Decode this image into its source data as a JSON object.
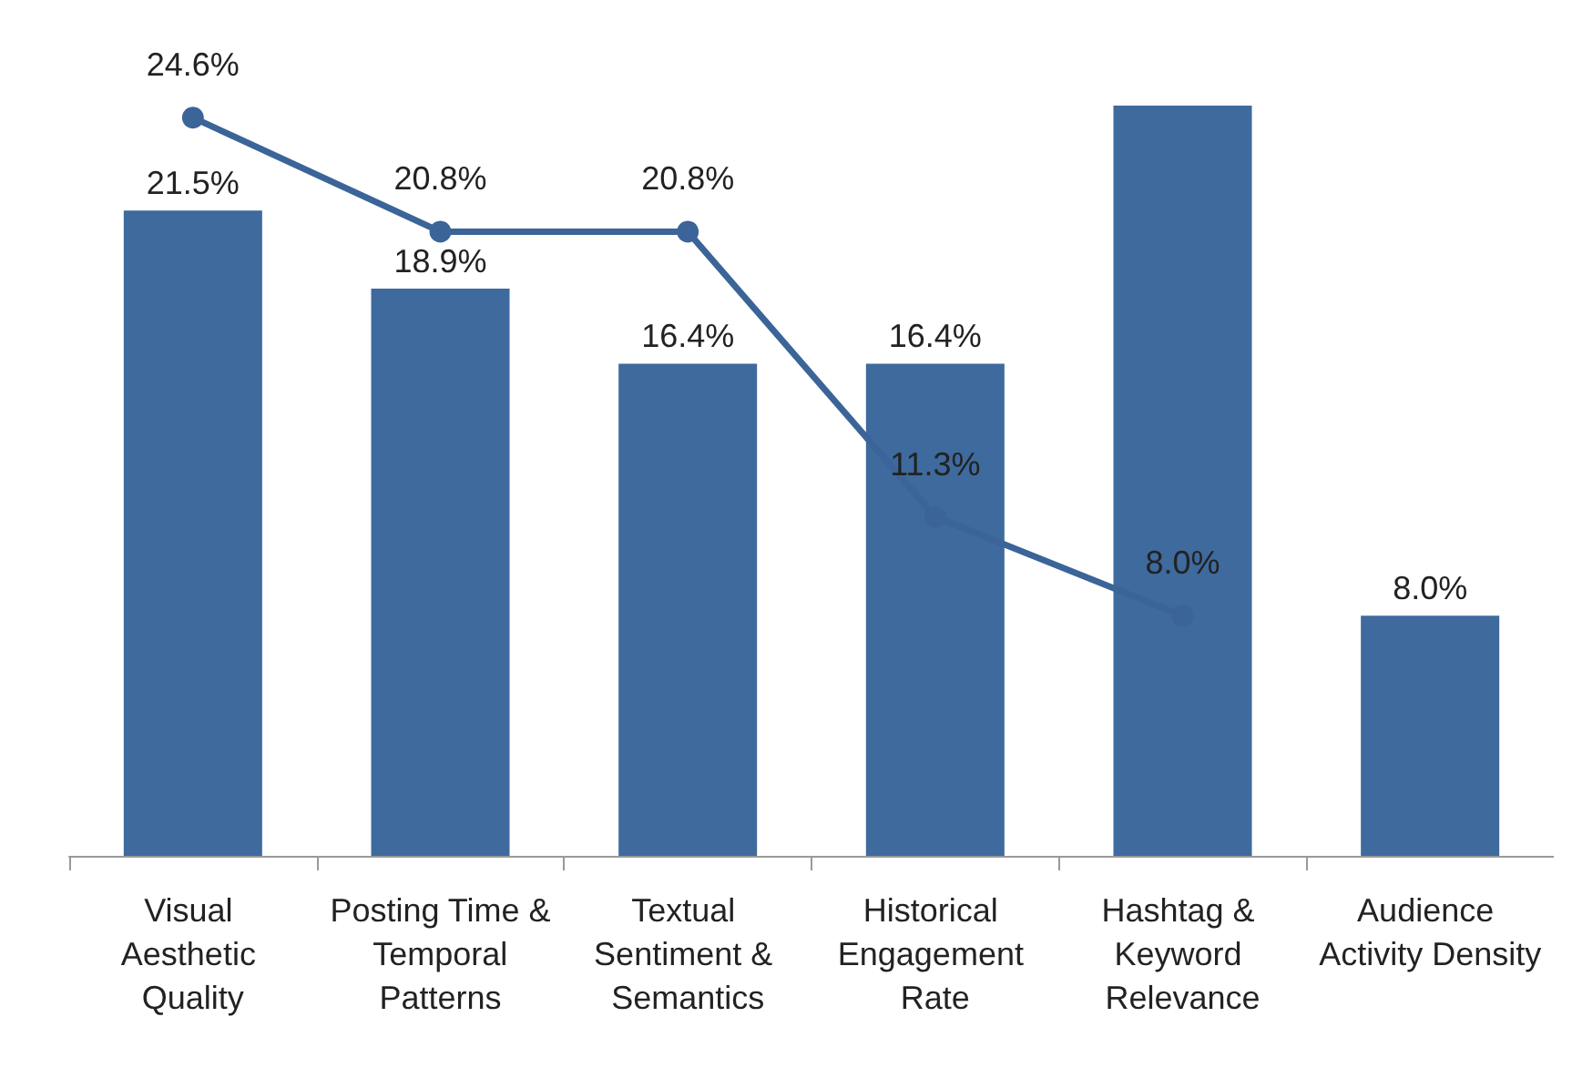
{
  "chart_data": {
    "type": "bar",
    "categories": [
      "Visual Aesthetic Quality",
      "Posting Time & Temporal Patterns",
      "Textual Sentiment & Semantics",
      "Historical Engagement Rate",
      "Hashtag & Keyword Relevance",
      "Audience Activity Density"
    ],
    "series": [
      {
        "color": "#3e6a9e",
        "values": [
          21.5,
          18.9,
          16.4,
          16.4,
          25,
          8.0
        ],
        "value_labels": [
          "21.5%",
          "18.9%",
          "16.4%",
          "16.4%",
          null,
          "8.0%"
        ]
      },
      {
        "type": "line",
        "color": "#3b6498",
        "values": [
          24.6,
          20.8,
          20.8,
          11.3,
          8.0,
          null
        ],
        "value_labels": [
          "24.6%",
          "20.8%",
          "20.8%",
          "11.3%",
          "8.0%",
          null
        ]
      }
    ],
    "marker": "circle",
    "line_style": "solid",
    "tick_labels": "x"
  }
}
